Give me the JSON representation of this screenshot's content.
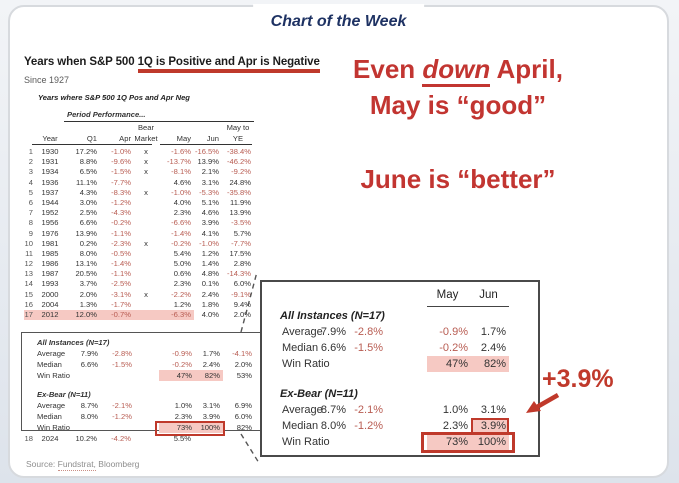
{
  "banner": {
    "title": "Chart of the Week"
  },
  "left_panel": {
    "title_prefix": "Years when S&P 500 ",
    "title_underlined": "1Q is Positive and Apr is Negative",
    "since": "Since 1927",
    "caption": "Years where S&P 500 1Q Pos and Apr Neg",
    "period_header": "Period Performance...",
    "headers": {
      "year": "Year",
      "q1": "Q1",
      "apr": "Apr",
      "bear1": "Bear",
      "bear2": "Market",
      "may": "May",
      "jun": "Jun",
      "ye1": "May to",
      "ye2": "YE"
    },
    "source": {
      "prefix": "Source: ",
      "link": "Fundstrat,",
      "rest": " Bloomberg"
    }
  },
  "annotation": {
    "line1_pre": "Even ",
    "line1_emphasis": "down",
    "line1_post": " April,",
    "line2": "May is “good”",
    "line3": "June is “better”",
    "gain_label": "+3.9%"
  },
  "callout": {
    "headers": {
      "may": "May",
      "jun": "Jun"
    }
  },
  "colors": {
    "accent_red": "#c0392b",
    "negative_value_red": "#b85c52",
    "highlight_pink": "#f6c9c3",
    "banner_navy": "#1e3263"
  },
  "chart_data": {
    "type": "table",
    "title": "Years when S&P 500 1Q is Positive and Apr is Negative",
    "subtitle": "Since 1927",
    "columns": [
      "Year",
      "Q1",
      "Apr",
      "Bear Market",
      "May",
      "Jun",
      "May to YE"
    ],
    "highlight_year": "2012",
    "rows": [
      {
        "n": "1",
        "year": "1930",
        "q1": "17.2%",
        "apr": "-1.0%",
        "bear": "x",
        "may": "-1.6%",
        "jun": "-16.5%",
        "ye": "-38.4%"
      },
      {
        "n": "2",
        "year": "1931",
        "q1": "8.8%",
        "apr": "-9.6%",
        "bear": "x",
        "may": "-13.7%",
        "jun": "13.9%",
        "ye": "-46.2%"
      },
      {
        "n": "3",
        "year": "1934",
        "q1": "6.5%",
        "apr": "-1.5%",
        "bear": "x",
        "may": "-8.1%",
        "jun": "2.1%",
        "ye": "-9.2%"
      },
      {
        "n": "4",
        "year": "1936",
        "q1": "11.1%",
        "apr": "-7.7%",
        "bear": "",
        "may": "4.6%",
        "jun": "3.1%",
        "ye": "24.8%"
      },
      {
        "n": "5",
        "year": "1937",
        "q1": "4.3%",
        "apr": "-8.3%",
        "bear": "x",
        "may": "-1.0%",
        "jun": "-5.3%",
        "ye": "-35.8%"
      },
      {
        "n": "6",
        "year": "1944",
        "q1": "3.0%",
        "apr": "-1.2%",
        "bear": "",
        "may": "4.0%",
        "jun": "5.1%",
        "ye": "11.9%"
      },
      {
        "n": "7",
        "year": "1952",
        "q1": "2.5%",
        "apr": "-4.3%",
        "bear": "",
        "may": "2.3%",
        "jun": "4.6%",
        "ye": "13.9%"
      },
      {
        "n": "8",
        "year": "1956",
        "q1": "6.6%",
        "apr": "-0.2%",
        "bear": "",
        "may": "-6.6%",
        "jun": "3.9%",
        "ye": "-3.5%"
      },
      {
        "n": "9",
        "year": "1976",
        "q1": "13.9%",
        "apr": "-1.1%",
        "bear": "",
        "may": "-1.4%",
        "jun": "4.1%",
        "ye": "5.7%"
      },
      {
        "n": "10",
        "year": "1981",
        "q1": "0.2%",
        "apr": "-2.3%",
        "bear": "x",
        "may": "-0.2%",
        "jun": "-1.0%",
        "ye": "-7.7%"
      },
      {
        "n": "11",
        "year": "1985",
        "q1": "8.0%",
        "apr": "-0.5%",
        "bear": "",
        "may": "5.4%",
        "jun": "1.2%",
        "ye": "17.5%"
      },
      {
        "n": "12",
        "year": "1986",
        "q1": "13.1%",
        "apr": "-1.4%",
        "bear": "",
        "may": "5.0%",
        "jun": "1.4%",
        "ye": "2.8%"
      },
      {
        "n": "13",
        "year": "1987",
        "q1": "20.5%",
        "apr": "-1.1%",
        "bear": "",
        "may": "0.6%",
        "jun": "4.8%",
        "ye": "-14.3%"
      },
      {
        "n": "14",
        "year": "1993",
        "q1": "3.7%",
        "apr": "-2.5%",
        "bear": "",
        "may": "2.3%",
        "jun": "0.1%",
        "ye": "6.0%"
      },
      {
        "n": "15",
        "year": "2000",
        "q1": "2.0%",
        "apr": "-3.1%",
        "bear": "x",
        "may": "-2.2%",
        "jun": "2.4%",
        "ye": "-9.1%"
      },
      {
        "n": "16",
        "year": "2004",
        "q1": "1.3%",
        "apr": "-1.7%",
        "bear": "",
        "may": "1.2%",
        "jun": "1.8%",
        "ye": "9.4%"
      },
      {
        "n": "17",
        "year": "2012",
        "q1": "12.0%",
        "apr": "-0.7%",
        "bear": "",
        "may": "-6.3%",
        "jun": "4.0%",
        "ye": "2.0%"
      }
    ],
    "row_2024": {
      "n": "18",
      "year": "2024",
      "q1": "10.2%",
      "apr": "-4.2%",
      "bear": "",
      "may": "5.5%",
      "jun": "",
      "ye": ""
    },
    "summary_groups": [
      {
        "heading": "All Instances (N=17)",
        "rows": [
          {
            "label": "Average",
            "q1": "7.9%",
            "apr": "-2.8%",
            "may": "-0.9%",
            "jun": "1.7%",
            "ye": "-4.1%"
          },
          {
            "label": "Median",
            "q1": "6.6%",
            "apr": "-1.5%",
            "may": "-0.2%",
            "jun": "2.4%",
            "ye": "2.0%"
          },
          {
            "label": "Win Ratio",
            "q1": "",
            "apr": "",
            "may": "47%",
            "jun": "82%",
            "ye": "53%",
            "style_left": "pink",
            "style_callout": "pink"
          }
        ]
      },
      {
        "heading": "Ex-Bear (N=11)",
        "rows": [
          {
            "label": "Average",
            "q1": "8.7%",
            "apr": "-2.1%",
            "may": "1.0%",
            "jun": "3.1%",
            "ye": "6.9%"
          },
          {
            "label": "Median",
            "q1": "8.0%",
            "apr": "-1.2%",
            "may": "2.3%",
            "jun": "3.9%",
            "ye": "6.0%",
            "style_callout": "jun-box"
          },
          {
            "label": "Win Ratio",
            "q1": "",
            "apr": "",
            "may": "73%",
            "jun": "100%",
            "ye": "82%",
            "style_left": "redbox",
            "style_callout": "redbox"
          }
        ]
      }
    ]
  }
}
